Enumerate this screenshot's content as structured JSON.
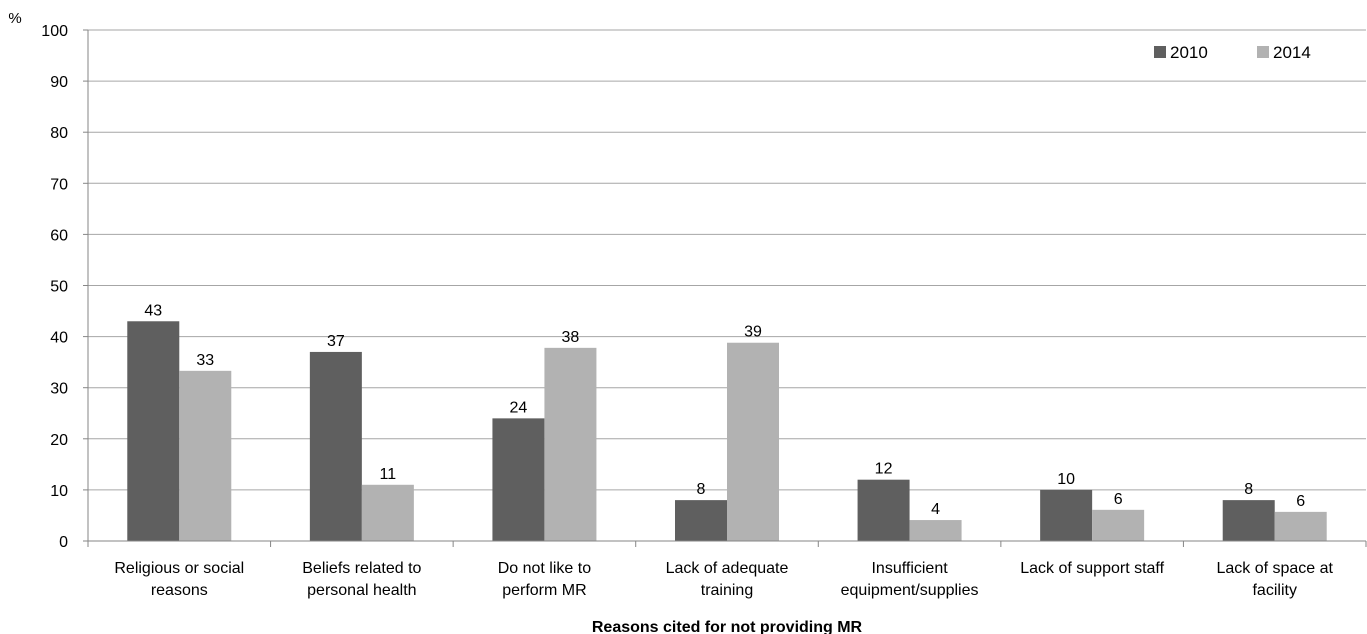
{
  "chart_data": {
    "type": "bar",
    "y_unit_label": "%",
    "xlabel": "Reasons cited for not providing MR",
    "ylabel": "",
    "ylim": [
      0,
      100
    ],
    "y_ticks": [
      0,
      10,
      20,
      30,
      40,
      50,
      60,
      70,
      80,
      90,
      100
    ],
    "grid": true,
    "legend_position": "top-right",
    "categories": [
      [
        "Religious or social",
        "reasons"
      ],
      [
        "Beliefs related to",
        "personal health"
      ],
      [
        "Do not like to",
        "perform MR"
      ],
      [
        "Lack of adequate",
        "training"
      ],
      [
        "Insufficient",
        "equipment/supplies"
      ],
      [
        "Lack of support staff"
      ],
      [
        "Lack of space at",
        "facility"
      ]
    ],
    "series": [
      {
        "name": "2010",
        "color": "#5f5f5f",
        "values": [
          43,
          37,
          24,
          8,
          12,
          10,
          8
        ]
      },
      {
        "name": "2014",
        "color": "#b2b2b2",
        "values": [
          33.3,
          11,
          37.8,
          38.8,
          4.1,
          6.1,
          5.7
        ],
        "labels": [
          "33",
          "11",
          "38",
          "39",
          "4",
          "6",
          "6"
        ]
      }
    ]
  }
}
